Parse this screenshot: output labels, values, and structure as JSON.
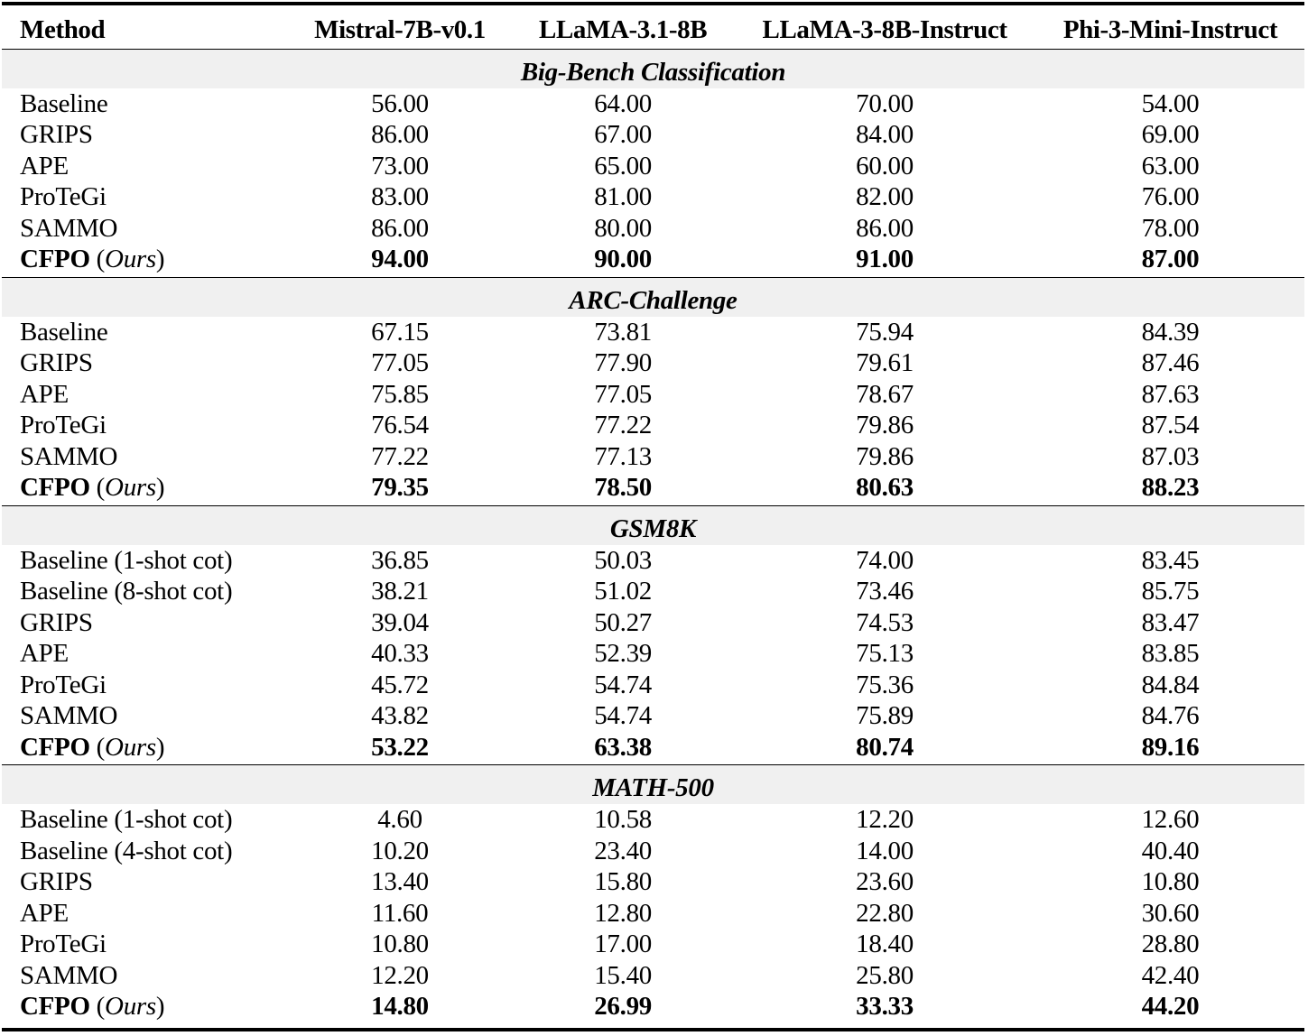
{
  "table": {
    "headers": [
      "Method",
      "Mistral-7B-v0.1",
      "LLaMA-3.1-8B",
      "LLaMA-3-8B-Instruct",
      "Phi-3-Mini-Instruct"
    ],
    "ours_label": "Ours",
    "sections": [
      {
        "title": "Big-Bench Classification",
        "rows": [
          {
            "method": "Baseline",
            "values": [
              "56.00",
              "64.00",
              "70.00",
              "54.00"
            ]
          },
          {
            "method": "GRIPS",
            "values": [
              "86.00",
              "67.00",
              "84.00",
              "69.00"
            ]
          },
          {
            "method": "APE",
            "values": [
              "73.00",
              "65.00",
              "60.00",
              "63.00"
            ]
          },
          {
            "method": "ProTeGi",
            "values": [
              "83.00",
              "81.00",
              "82.00",
              "76.00"
            ]
          },
          {
            "method": "SAMMO",
            "values": [
              "86.00",
              "80.00",
              "86.00",
              "78.00"
            ]
          },
          {
            "method": "CFPO",
            "values": [
              "94.00",
              "90.00",
              "91.00",
              "87.00"
            ],
            "bold": true
          }
        ]
      },
      {
        "title": "ARC-Challenge",
        "rows": [
          {
            "method": "Baseline",
            "values": [
              "67.15",
              "73.81",
              "75.94",
              "84.39"
            ]
          },
          {
            "method": "GRIPS",
            "values": [
              "77.05",
              "77.90",
              "79.61",
              "87.46"
            ]
          },
          {
            "method": "APE",
            "values": [
              "75.85",
              "77.05",
              "78.67",
              "87.63"
            ]
          },
          {
            "method": "ProTeGi",
            "values": [
              "76.54",
              "77.22",
              "79.86",
              "87.54"
            ]
          },
          {
            "method": "SAMMO",
            "values": [
              "77.22",
              "77.13",
              "79.86",
              "87.03"
            ]
          },
          {
            "method": "CFPO",
            "values": [
              "79.35",
              "78.50",
              "80.63",
              "88.23"
            ],
            "bold": true
          }
        ]
      },
      {
        "title": "GSM8K",
        "rows": [
          {
            "method": "Baseline (1-shot cot)",
            "values": [
              "36.85",
              "50.03",
              "74.00",
              "83.45"
            ]
          },
          {
            "method": "Baseline (8-shot cot)",
            "values": [
              "38.21",
              "51.02",
              "73.46",
              "85.75"
            ]
          },
          {
            "method": "GRIPS",
            "values": [
              "39.04",
              "50.27",
              "74.53",
              "83.47"
            ]
          },
          {
            "method": "APE",
            "values": [
              "40.33",
              "52.39",
              "75.13",
              "83.85"
            ]
          },
          {
            "method": "ProTeGi",
            "values": [
              "45.72",
              "54.74",
              "75.36",
              "84.84"
            ]
          },
          {
            "method": "SAMMO",
            "values": [
              "43.82",
              "54.74",
              "75.89",
              "84.76"
            ]
          },
          {
            "method": "CFPO",
            "values": [
              "53.22",
              "63.38",
              "80.74",
              "89.16"
            ],
            "bold": true
          }
        ]
      },
      {
        "title": "MATH-500",
        "rows": [
          {
            "method": "Baseline (1-shot cot)",
            "values": [
              "4.60",
              "10.58",
              "12.20",
              "12.60"
            ]
          },
          {
            "method": "Baseline (4-shot cot)",
            "values": [
              "10.20",
              "23.40",
              "14.00",
              "40.40"
            ]
          },
          {
            "method": "GRIPS",
            "values": [
              "13.40",
              "15.80",
              "23.60",
              "10.80"
            ]
          },
          {
            "method": "APE",
            "values": [
              "11.60",
              "12.80",
              "22.80",
              "30.60"
            ]
          },
          {
            "method": "ProTeGi",
            "values": [
              "10.80",
              "17.00",
              "18.40",
              "28.80"
            ]
          },
          {
            "method": "SAMMO",
            "values": [
              "12.20",
              "15.40",
              "25.80",
              "42.40"
            ]
          },
          {
            "method": "CFPO",
            "values": [
              "14.80",
              "26.99",
              "33.33",
              "44.20"
            ],
            "bold": true
          }
        ]
      }
    ]
  },
  "style": {
    "section_band_color": "#f0f0f0",
    "rule_color": "#000000"
  }
}
